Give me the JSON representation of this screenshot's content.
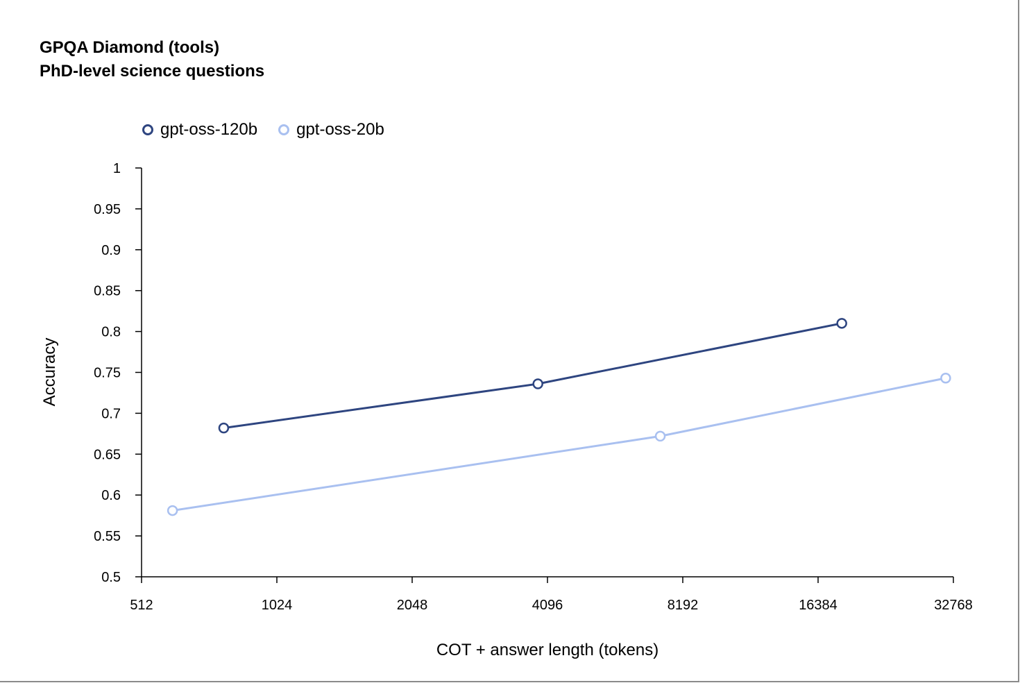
{
  "chart_data": {
    "type": "line",
    "title": "GPQA Diamond (tools)",
    "subtitle": "PhD-level science questions",
    "xlabel": "COT + answer length (tokens)",
    "ylabel": "Accuracy",
    "x_scale": "log2",
    "xlim": [
      512,
      32768
    ],
    "ylim": [
      0.5,
      1
    ],
    "x_ticks": [
      512,
      1024,
      2048,
      4096,
      8192,
      16384,
      32768
    ],
    "x_tick_labels": [
      "512",
      "1024",
      "2048",
      "4096",
      "8192",
      "16384",
      "32768"
    ],
    "y_ticks": [
      0.5,
      0.55,
      0.6,
      0.65,
      0.7,
      0.75,
      0.8,
      0.85,
      0.9,
      0.95,
      1
    ],
    "y_tick_labels": [
      "0.5",
      "0.55",
      "0.6",
      "0.65",
      "0.7",
      "0.75",
      "0.8",
      "0.85",
      "0.9",
      "0.95",
      "1"
    ],
    "grid": false,
    "legend_position": "top-left",
    "series": [
      {
        "name": "gpt-oss-120b",
        "color": "#2e4580",
        "x": [
          780,
          3900,
          18500
        ],
        "y": [
          0.682,
          0.736,
          0.81
        ]
      },
      {
        "name": "gpt-oss-20b",
        "color": "#a9c0f0",
        "x": [
          600,
          7300,
          31500
        ],
        "y": [
          0.581,
          0.672,
          0.743
        ]
      }
    ]
  }
}
